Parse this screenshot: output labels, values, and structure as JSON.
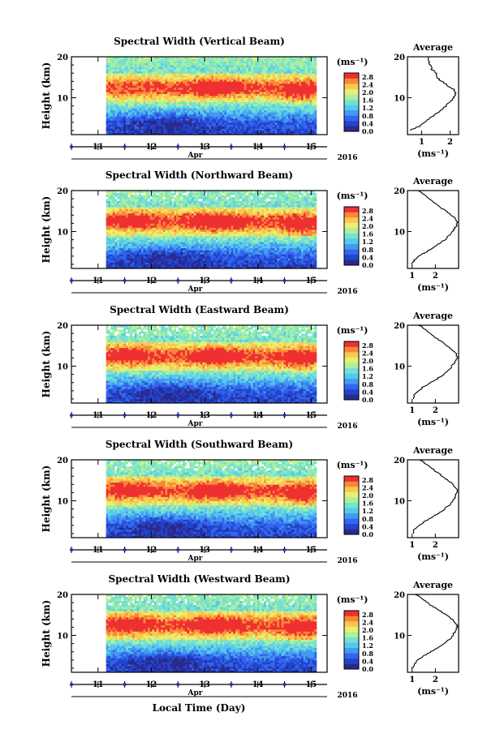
{
  "chart_data": [
    {
      "type": "heatmap",
      "title": "Spectral Width (Vertical Beam)",
      "ylabel": "Height (km)",
      "ylim": [
        1,
        20
      ],
      "y_ticks": [
        "20",
        "10"
      ],
      "x_ticks": [
        "11",
        "12",
        "13",
        "14",
        "15"
      ],
      "xlim": [
        10.5,
        15.3
      ],
      "data_start": 11.15,
      "data_end": 15.1,
      "month_label": "Apr",
      "year_label": "2016",
      "colorbar": {
        "unit": "(ms⁻¹)",
        "ticks": [
          "0.0",
          "0.4",
          "0.8",
          "1.2",
          "1.6",
          "2.0",
          "2.4",
          "2.8"
        ],
        "vmin": 0,
        "vmax": 3.0
      },
      "profile": {
        "title": "Average",
        "xlabel": "(ms⁻¹)",
        "x_ticks": [
          "1",
          "2"
        ],
        "xlim": [
          0.5,
          2.3
        ],
        "y_ticks": [
          "20",
          "10"
        ],
        "heights": [
          2,
          3,
          4,
          5,
          6,
          7,
          8,
          9,
          10,
          11,
          12,
          13,
          14,
          15,
          16,
          17,
          18,
          19,
          20
        ],
        "values": [
          0.6,
          0.9,
          1.1,
          1.3,
          1.5,
          1.7,
          1.85,
          2.0,
          2.1,
          2.2,
          2.15,
          1.9,
          1.7,
          1.55,
          1.5,
          1.35,
          1.3,
          1.25,
          1.2
        ]
      }
    },
    {
      "type": "heatmap",
      "title": "Spectral Width (Northward Beam)",
      "ylabel": "Height (km)",
      "ylim": [
        1,
        20
      ],
      "y_ticks": [
        "20",
        "10"
      ],
      "x_ticks": [
        "11",
        "12",
        "13",
        "14",
        "15"
      ],
      "xlim": [
        10.5,
        15.3
      ],
      "data_start": 11.15,
      "data_end": 15.1,
      "month_label": "Apr",
      "year_label": "2016",
      "colorbar": {
        "unit": "(ms⁻¹)",
        "ticks": [
          "0.0",
          "0.4",
          "0.8",
          "1.2",
          "1.6",
          "2.0",
          "2.4",
          "2.8"
        ],
        "vmin": 0,
        "vmax": 3.0
      },
      "profile": {
        "title": "Average",
        "xlabel": "(ms⁻¹)",
        "x_ticks": [
          "1",
          "2"
        ],
        "xlim": [
          0.8,
          3.0
        ],
        "y_ticks": [
          "20",
          "10"
        ],
        "heights": [
          2,
          3,
          4,
          5,
          6,
          7,
          8,
          9,
          10,
          11,
          12,
          13,
          14,
          15,
          16,
          17,
          18,
          19,
          20
        ],
        "values": [
          1.0,
          1.1,
          1.3,
          1.6,
          1.9,
          2.15,
          2.4,
          2.6,
          2.75,
          2.85,
          2.95,
          2.9,
          2.7,
          2.45,
          2.2,
          1.95,
          1.75,
          1.5,
          1.3
        ]
      }
    },
    {
      "type": "heatmap",
      "title": "Spectral Width (Eastward Beam)",
      "ylabel": "Height (km)",
      "ylim": [
        1,
        20
      ],
      "y_ticks": [
        "20",
        "10"
      ],
      "x_ticks": [
        "11",
        "12",
        "13",
        "14",
        "15"
      ],
      "xlim": [
        10.5,
        15.3
      ],
      "data_start": 11.15,
      "data_end": 15.1,
      "month_label": "Apr",
      "year_label": "2016",
      "colorbar": {
        "unit": "(ms⁻¹)",
        "ticks": [
          "0.0",
          "0.4",
          "0.8",
          "1.2",
          "1.6",
          "2.0",
          "2.4",
          "2.8"
        ],
        "vmin": 0,
        "vmax": 3.0
      },
      "profile": {
        "title": "Average",
        "xlabel": "(ms⁻¹)",
        "x_ticks": [
          "1",
          "2"
        ],
        "xlim": [
          0.8,
          3.0
        ],
        "y_ticks": [
          "20",
          "10"
        ],
        "heights": [
          2,
          3,
          4,
          5,
          6,
          7,
          8,
          9,
          10,
          11,
          12,
          13,
          14,
          15,
          16,
          17,
          18,
          19,
          20
        ],
        "values": [
          1.05,
          1.1,
          1.25,
          1.5,
          1.8,
          2.1,
          2.35,
          2.55,
          2.7,
          2.85,
          2.95,
          2.9,
          2.7,
          2.5,
          2.25,
          2.0,
          1.8,
          1.55,
          1.3
        ]
      }
    },
    {
      "type": "heatmap",
      "title": "Spectral Width (Southward Beam)",
      "ylabel": "Height (km)",
      "ylim": [
        1,
        20
      ],
      "y_ticks": [
        "20",
        "10"
      ],
      "x_ticks": [
        "11",
        "12",
        "13",
        "14",
        "15"
      ],
      "xlim": [
        10.5,
        15.3
      ],
      "data_start": 11.15,
      "data_end": 15.1,
      "month_label": "Apr",
      "year_label": "2016",
      "colorbar": {
        "unit": "(ms⁻¹)",
        "ticks": [
          "0.0",
          "0.4",
          "0.8",
          "1.2",
          "1.6",
          "2.0",
          "2.4",
          "2.8"
        ],
        "vmin": 0,
        "vmax": 3.0
      },
      "profile": {
        "title": "Average",
        "xlabel": "(ms⁻¹)",
        "x_ticks": [
          "1",
          "2"
        ],
        "xlim": [
          0.8,
          3.0
        ],
        "y_ticks": [
          "20",
          "10"
        ],
        "heights": [
          2,
          3,
          4,
          5,
          6,
          7,
          8,
          9,
          10,
          11,
          12,
          13,
          14,
          15,
          16,
          17,
          18,
          19,
          20
        ],
        "values": [
          1.05,
          1.1,
          1.3,
          1.55,
          1.85,
          2.15,
          2.4,
          2.6,
          2.75,
          2.85,
          2.95,
          2.9,
          2.75,
          2.55,
          2.3,
          2.05,
          1.85,
          1.6,
          1.35
        ]
      }
    },
    {
      "type": "heatmap",
      "title": "Spectral Width (Westward Beam)",
      "ylabel": "Height (km)",
      "ylim": [
        1,
        20
      ],
      "y_ticks": [
        "20",
        "10"
      ],
      "x_ticks": [
        "11",
        "12",
        "13",
        "14",
        "15"
      ],
      "xlim": [
        10.5,
        15.3
      ],
      "data_start": 11.15,
      "data_end": 15.1,
      "month_label": "Apr",
      "year_label": "2016",
      "colorbar": {
        "unit": "(ms⁻¹)",
        "ticks": [
          "0.0",
          "0.4",
          "0.8",
          "1.2",
          "1.6",
          "2.0",
          "2.4",
          "2.8"
        ],
        "vmin": 0,
        "vmax": 3.0
      },
      "profile": {
        "title": "Average",
        "xlabel": "(ms⁻¹)",
        "x_ticks": [
          "1",
          "2"
        ],
        "xlim": [
          0.8,
          3.0
        ],
        "y_ticks": [
          "20",
          "10"
        ],
        "heights": [
          2,
          3,
          4,
          5,
          6,
          7,
          8,
          9,
          10,
          11,
          12,
          13,
          14,
          15,
          16,
          17,
          18,
          19,
          20
        ],
        "values": [
          1.0,
          1.1,
          1.25,
          1.5,
          1.8,
          2.1,
          2.35,
          2.6,
          2.75,
          2.85,
          2.95,
          2.9,
          2.7,
          2.45,
          2.2,
          1.9,
          1.65,
          1.4,
          1.15
        ]
      }
    }
  ],
  "xlabel": "Local Time (Day)",
  "colormap": [
    "#2a2a8c",
    "#2244cc",
    "#3366ee",
    "#4499f0",
    "#55c8ee",
    "#77e0d0",
    "#aaf0a0",
    "#e8f070",
    "#f8c850",
    "#f88838",
    "#ee3030"
  ]
}
